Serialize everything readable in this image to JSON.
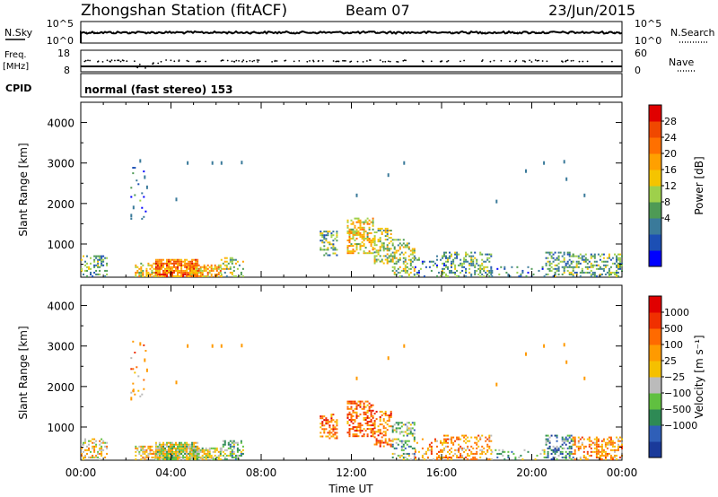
{
  "header": {
    "station": "Zhongshan Station (fitACF)",
    "beam": "Beam 07",
    "date": "23/Jun/2015"
  },
  "panels": {
    "nsky_label": "N.Sky",
    "nsky_ticks": [
      "10^5",
      "10^0"
    ],
    "nsearch_label": "N.Search",
    "freq_label_top": "Freq.",
    "freq_label_unit": "[MHz]",
    "freq_ticks": [
      "18",
      "8"
    ],
    "nave_label": "Nave",
    "nave_ticks": [
      "60",
      "0"
    ],
    "cpid_label": "CPID",
    "cpid_text": "normal (fast stereo) 153"
  },
  "chart_data": {
    "type": "heatmap",
    "xlabel": "Time UT",
    "x_ticks": [
      "00:00",
      "04:00",
      "08:00",
      "12:00",
      "16:00",
      "20:00",
      "00:00"
    ],
    "x_range_hours": [
      0,
      24
    ],
    "plots": [
      {
        "name": "power",
        "ylabel": "Slant Range [km]",
        "ylim": [
          180,
          4500
        ],
        "y_ticks": [
          1000,
          2000,
          3000,
          4000
        ],
        "colorbar_label": "Power [dB]",
        "colorbar_ticks": [
          "28",
          "24",
          "20",
          "16",
          "12",
          "8",
          "4"
        ],
        "colors": [
          "#0000ff",
          "#1c4fb4",
          "#3a7a9a",
          "#4e9a55",
          "#9ed04b",
          "#f5c400",
          "#ffa000",
          "#ff7000",
          "#f04800",
          "#e00000"
        ]
      },
      {
        "name": "velocity",
        "ylabel": "Slant Range [km]",
        "ylim": [
          180,
          4500
        ],
        "y_ticks": [
          1000,
          2000,
          3000,
          4000
        ],
        "colorbar_label": "Velocity [m s⁻¹]",
        "colorbar_ticks": [
          "1000",
          "500",
          "100",
          "25",
          "−25",
          "−100",
          "−500",
          "−1000"
        ],
        "colors": [
          "#1a3a9a",
          "#2f5fb8",
          "#2e8a55",
          "#60c040",
          "#bbbbbb",
          "#f5c000",
          "#ff9a00",
          "#ff6a00",
          "#f03000",
          "#e00000"
        ]
      }
    ],
    "echo_regions": [
      {
        "t0": 0.0,
        "t1": 1.2,
        "r0": 180,
        "r1": 700,
        "p": 0.35,
        "pow": 3,
        "vel": 5
      },
      {
        "t0": 2.4,
        "t1": 3.6,
        "r0": 180,
        "r1": 520,
        "p": 0.55,
        "pow": 5,
        "vel": 5
      },
      {
        "t0": 3.3,
        "t1": 5.2,
        "r0": 180,
        "r1": 620,
        "p": 0.85,
        "pow": 7,
        "vel": 4
      },
      {
        "t0": 4.8,
        "t1": 6.2,
        "r0": 180,
        "r1": 480,
        "p": 0.7,
        "pow": 6,
        "vel": 4
      },
      {
        "t0": 6.2,
        "t1": 7.2,
        "r0": 180,
        "r1": 650,
        "p": 0.35,
        "pow": 4,
        "vel": 3
      },
      {
        "t0": 2.2,
        "t1": 2.9,
        "r0": 1600,
        "r1": 3100,
        "p": 0.06,
        "pow": 2,
        "vel": 6
      },
      {
        "t0": 10.6,
        "t1": 11.4,
        "r0": 700,
        "r1": 1300,
        "p": 0.45,
        "pow": 3,
        "vel": 7
      },
      {
        "t0": 11.8,
        "t1": 13.0,
        "r0": 750,
        "r1": 1650,
        "p": 0.55,
        "pow": 5,
        "vel": 7
      },
      {
        "t0": 13.0,
        "t1": 13.8,
        "r0": 500,
        "r1": 1400,
        "p": 0.45,
        "pow": 4,
        "vel": 7
      },
      {
        "t0": 13.8,
        "t1": 14.8,
        "r0": 180,
        "r1": 1100,
        "p": 0.4,
        "pow": 4,
        "vel": 3
      },
      {
        "t0": 14.8,
        "t1": 16.2,
        "r0": 180,
        "r1": 700,
        "p": 0.18,
        "pow": 2,
        "vel": 6
      },
      {
        "t0": 16.0,
        "t1": 18.2,
        "r0": 180,
        "r1": 800,
        "p": 0.35,
        "pow": 3,
        "vel": 6
      },
      {
        "t0": 18.2,
        "t1": 20.6,
        "r0": 180,
        "r1": 450,
        "p": 0.15,
        "pow": 2,
        "vel": 3
      },
      {
        "t0": 20.6,
        "t1": 21.8,
        "r0": 180,
        "r1": 800,
        "p": 0.45,
        "pow": 3,
        "vel": 2
      },
      {
        "t0": 21.8,
        "t1": 24.0,
        "r0": 180,
        "r1": 750,
        "p": 0.4,
        "pow": 3,
        "vel": 6
      }
    ]
  }
}
